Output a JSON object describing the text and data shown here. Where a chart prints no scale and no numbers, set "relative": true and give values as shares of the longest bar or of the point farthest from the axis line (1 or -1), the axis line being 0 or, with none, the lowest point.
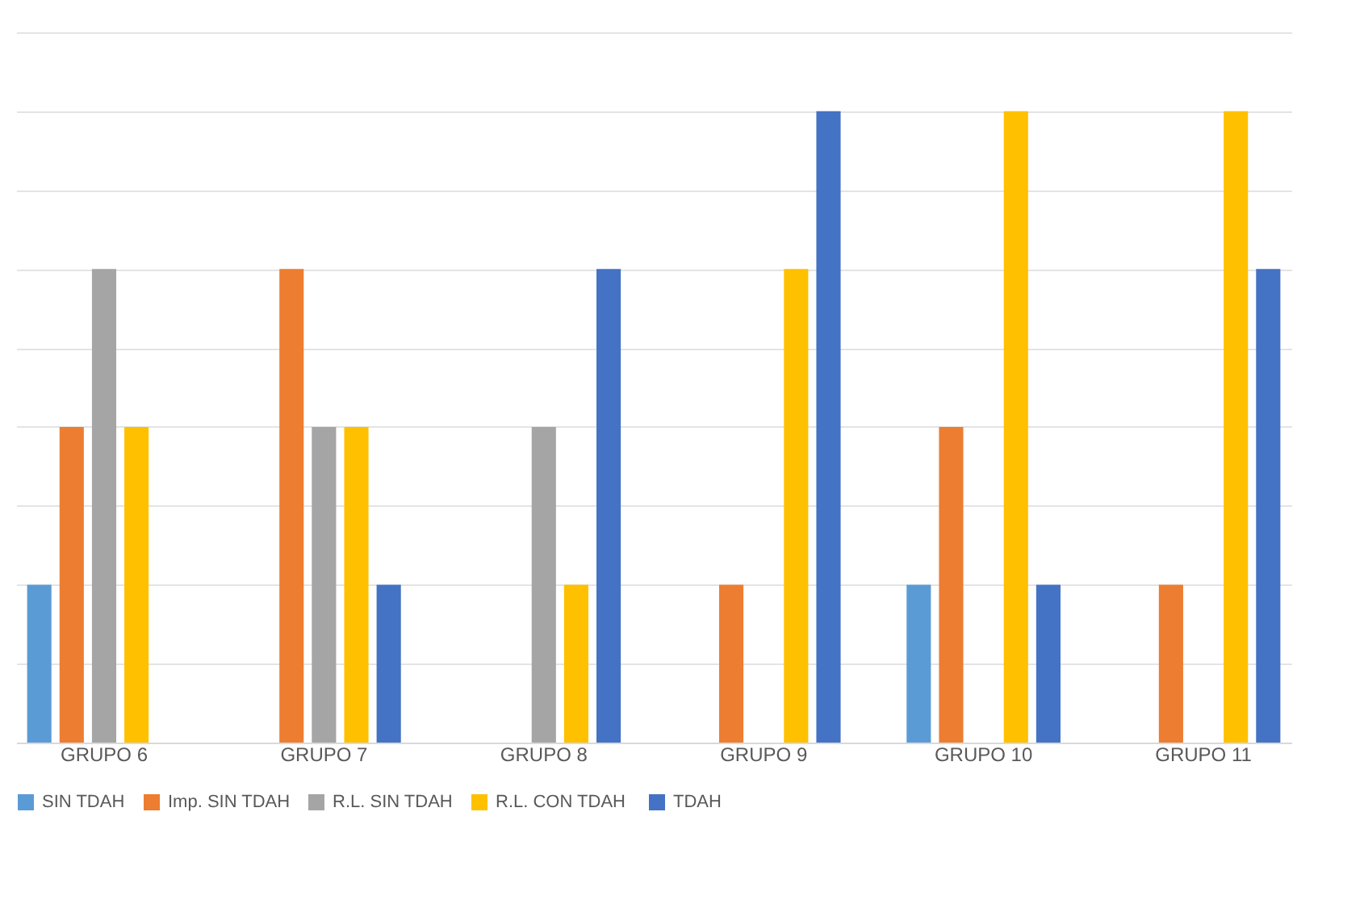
{
  "chart_data": {
    "type": "bar",
    "relative": true,
    "categories": [
      "GRUPO 6",
      "GRUPO 7",
      "GRUPO 8",
      "GRUPO 9",
      "GRUPO 10",
      "GRUPO 11"
    ],
    "series": [
      {
        "name": "SIN TDAH",
        "color": "#5b9bd5",
        "values": [
          0.25,
          0,
          0,
          0,
          0.25,
          0
        ]
      },
      {
        "name": "Imp. SIN TDAH",
        "color": "#ed7d31",
        "values": [
          0.5,
          0.75,
          0,
          0.25,
          0.5,
          0.25
        ]
      },
      {
        "name": "R.L. SIN TDAH",
        "color": "#a5a5a5",
        "values": [
          0.75,
          0.5,
          0.5,
          0,
          0,
          0
        ]
      },
      {
        "name": "R.L. CON  TDAH",
        "color": "#ffc000",
        "values": [
          0.5,
          0.5,
          0.25,
          0.75,
          1,
          1
        ]
      },
      {
        "name": "TDAH",
        "color": "#4472c4",
        "values": [
          0,
          0.25,
          0.75,
          1,
          0.25,
          0.75
        ]
      }
    ],
    "grid": "y",
    "legend": "bottom"
  }
}
